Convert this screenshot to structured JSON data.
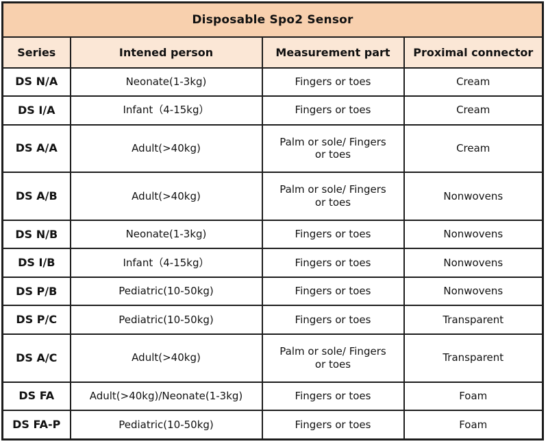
{
  "table": {
    "title": "Disposable Spo2 Sensor",
    "columns": [
      {
        "key": "series",
        "label": "Series"
      },
      {
        "key": "person",
        "label": "Intened person"
      },
      {
        "key": "part",
        "label": "Measurement part"
      },
      {
        "key": "connector",
        "label": "Proximal connector"
      }
    ],
    "rows": [
      {
        "series": "DS N/A",
        "person": "Neonate(1-3kg)",
        "part": "Fingers or toes",
        "connector": "Cream"
      },
      {
        "series": "DS I/A",
        "person": "Infant（4-15kg）",
        "part": "Fingers or toes",
        "connector": "Cream"
      },
      {
        "series": "DS A/A",
        "person": "Adult(>40kg)",
        "part": "Palm or sole/   Fingers\nor toes",
        "connector": "Cream"
      },
      {
        "series": "DS A/B",
        "person": "Adult(>40kg)",
        "part": "Palm or sole/   Fingers\nor toes",
        "connector": "Nonwovens"
      },
      {
        "series": "DS N/B",
        "person": "Neonate(1-3kg)",
        "part": "Fingers or toes",
        "connector": "Nonwovens"
      },
      {
        "series": "DS I/B",
        "person": "Infant（4-15kg）",
        "part": "Fingers or toes",
        "connector": "Nonwovens"
      },
      {
        "series": "DS P/B",
        "person": "Pediatric(10-50kg)",
        "part": "Fingers or toes",
        "connector": "Nonwovens"
      },
      {
        "series": "DS P/C",
        "person": "Pediatric(10-50kg)",
        "part": "Fingers or toes",
        "connector": "Transparent"
      },
      {
        "series": "DS A/C",
        "person": "Adult(>40kg)",
        "part": "Palm or sole/   Fingers\nor toes",
        "connector": "Transparent"
      },
      {
        "series": "DS FA",
        "person": "Adult(>40kg)/Neonate(1-3kg)",
        "part": "Fingers or toes",
        "connector": "Foam"
      },
      {
        "series": "DS FA-P",
        "person": "Pediatric(10-50kg)",
        "part": "Fingers or toes",
        "connector": "Foam"
      }
    ]
  },
  "colors": {
    "title_bg": "#F8D0AE",
    "header_bg": "#FBE7D6",
    "border": "#1C1C1C",
    "text": "#111111",
    "row_bg": "#FFFFFF"
  }
}
